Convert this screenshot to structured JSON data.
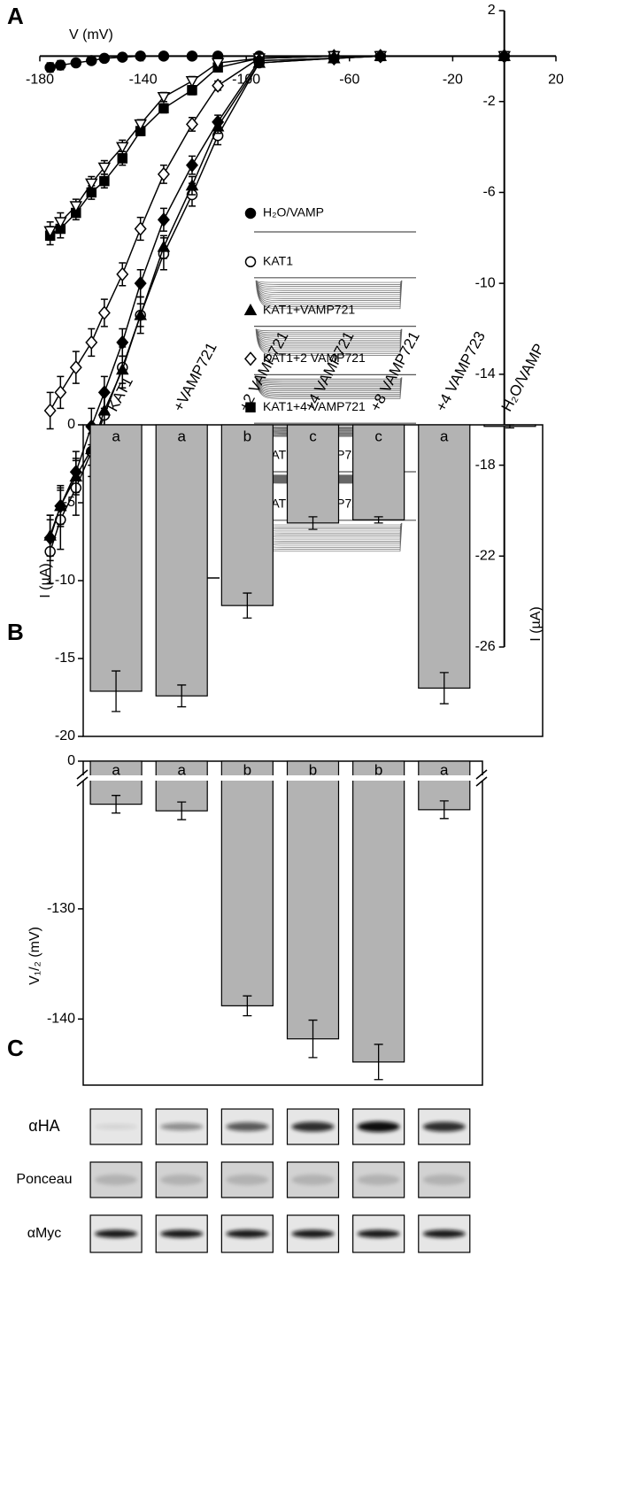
{
  "panels": [
    "A",
    "B",
    "C"
  ],
  "blot_rows": [
    "αHA",
    "Ponceau",
    "αMyc"
  ],
  "chart_data": [
    {
      "type": "line",
      "xlabel": "V (mV)",
      "ylabel": "I (µA)",
      "xlim": [
        -180,
        20
      ],
      "xticks": [
        -180,
        -140,
        -100,
        -60,
        -20,
        20
      ],
      "ylim": [
        -26,
        2
      ],
      "yticks": [
        2,
        -2,
        -6,
        -10,
        -14,
        -18,
        -22,
        -26
      ],
      "x": [
        -176,
        -172,
        -166,
        -160,
        -155,
        -148,
        -141,
        -132,
        -121,
        -111,
        -95,
        -66,
        -48,
        0
      ],
      "series": [
        {
          "name": "H₂O/VAMP",
          "color": "#000000",
          "marker": "circle",
          "values": [
            -0.5,
            -0.4,
            -0.3,
            -0.2,
            -0.1,
            -0.05,
            0,
            0,
            0,
            0,
            0,
            0,
            0,
            0
          ],
          "errors": [
            0.2,
            0.2,
            0.1,
            0.1,
            0.1,
            0,
            0,
            0,
            0,
            0,
            0,
            0,
            0,
            0
          ]
        },
        {
          "name": "KAT1",
          "color": "#000000",
          "marker": "circle-open",
          "values": [
            -21.8,
            -20.4,
            -19.0,
            -17.4,
            -15.8,
            -13.7,
            -11.4,
            -8.7,
            -6.1,
            -3.5,
            -0.3,
            -0.1,
            0,
            0
          ],
          "errors": [
            1.4,
            1.3,
            1.2,
            1.1,
            1.0,
            0.9,
            0.8,
            0.7,
            0.5,
            0.4,
            0.1,
            0,
            0,
            0
          ]
        },
        {
          "name": "KAT1+VAMP721",
          "color": "#000000",
          "marker": "triangle",
          "values": [
            -21.1,
            -19.8,
            -18.5,
            -17.3,
            -15.6,
            -13.8,
            -11.4,
            -8.4,
            -5.7,
            -3.1,
            -0.3,
            -0.1,
            0,
            0
          ],
          "errors": [
            0.9,
            0.8,
            0.8,
            0.7,
            0.7,
            0.6,
            0.5,
            0.5,
            0.4,
            0.3,
            0.1,
            0,
            0,
            0
          ]
        },
        {
          "name": "KAT1+2 VAMP721",
          "color": "#000000",
          "marker": "diamond-open",
          "values": [
            -15.6,
            -14.8,
            -13.7,
            -12.6,
            -11.3,
            -9.6,
            -7.6,
            -5.2,
            -3.0,
            -1.3,
            -0.1,
            0,
            0,
            0
          ],
          "errors": [
            0.8,
            0.7,
            0.7,
            0.6,
            0.6,
            0.5,
            0.5,
            0.4,
            0.3,
            0.2,
            0.1,
            0,
            0,
            0
          ]
        },
        {
          "name": "KAT1+4 VAMP721",
          "color": "#000000",
          "marker": "square",
          "values": [
            -7.9,
            -7.6,
            -6.9,
            -6.0,
            -5.5,
            -4.5,
            -3.3,
            -2.3,
            -1.5,
            -0.5,
            -0.1,
            0,
            0,
            0
          ],
          "errors": [
            0.4,
            0.4,
            0.3,
            0.3,
            0.3,
            0.3,
            0.2,
            0.2,
            0.2,
            0.1,
            0,
            0,
            0,
            0
          ]
        },
        {
          "name": "KAT1+8 VAMP721",
          "color": "#000000",
          "marker": "triangle-down-open",
          "values": [
            -7.7,
            -7.3,
            -6.6,
            -5.6,
            -4.9,
            -4.0,
            -3.0,
            -1.8,
            -1.1,
            -0.3,
            -0.1,
            0,
            0,
            0
          ],
          "errors": [
            0.4,
            0.4,
            0.3,
            0.3,
            0.3,
            0.3,
            0.2,
            0.2,
            0.2,
            0.1,
            0,
            0,
            0,
            0
          ]
        },
        {
          "name": "KAT1+4 VAMP723",
          "color": "#000000",
          "marker": "diamond",
          "values": [
            -21.2,
            -19.8,
            -18.3,
            -16.3,
            -14.8,
            -12.6,
            -10.0,
            -7.2,
            -4.8,
            -2.9,
            -0.2,
            -0.1,
            0,
            0
          ],
          "errors": [
            1.0,
            0.9,
            0.9,
            0.8,
            0.7,
            0.6,
            0.6,
            0.5,
            0.4,
            0.3,
            0.1,
            0,
            0,
            0
          ]
        }
      ]
    },
    {
      "type": "bar",
      "ylabel": "I (µA)",
      "categories": [
        "KAT1",
        "+VAMP721",
        "+2 VAMP721",
        "+4 VAMP721",
        "+8 VAMP721",
        "+4 VAMP723",
        "H₂O/VAMP"
      ],
      "values": [
        -17.1,
        -17.4,
        -11.6,
        -6.3,
        -6.1,
        -16.9,
        -0.1
      ],
      "errors": [
        1.3,
        0.7,
        0.8,
        0.4,
        0.2,
        1.0,
        0.1
      ],
      "letters": [
        "a",
        "a",
        "b",
        "c",
        "c",
        "a"
      ],
      "color": "#b3b3b3",
      "ylim": [
        -20,
        0
      ],
      "yticks": [
        0,
        -5,
        -10,
        -15,
        -20
      ]
    },
    {
      "type": "bar",
      "ylabel": "V₁/₂ (mV)",
      "broken_axis": true,
      "values": [
        -120.5,
        -121.1,
        -138.8,
        -141.8,
        -143.9,
        -121.0
      ],
      "errors": [
        0.8,
        0.8,
        0.9,
        1.7,
        1.6,
        0.8
      ],
      "letters": [
        "a",
        "a",
        "b",
        "b",
        "b",
        "a"
      ],
      "color": "#b3b3b3",
      "ylim": [
        -146,
        -118.2
      ],
      "yticks": [
        0,
        -130,
        -140
      ]
    }
  ]
}
